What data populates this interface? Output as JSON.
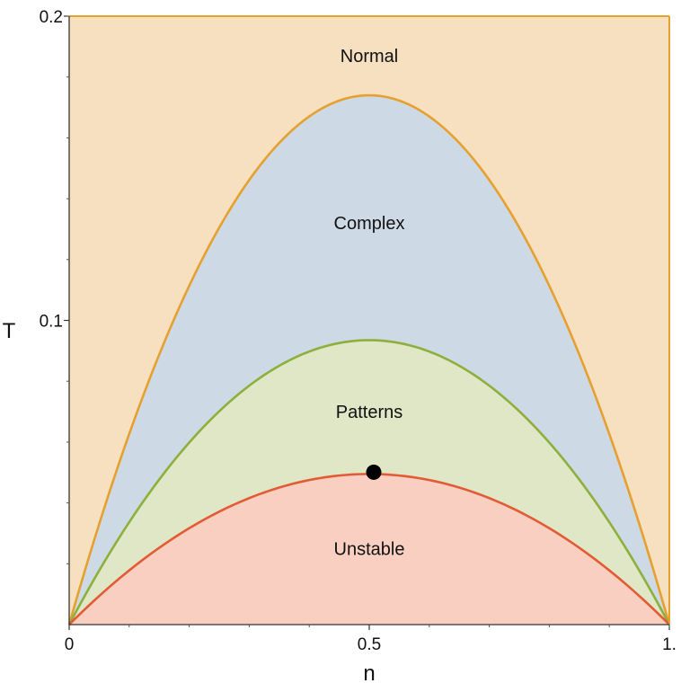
{
  "chart_data": {
    "type": "area",
    "xlabel": "n",
    "ylabel": "T",
    "xlim": [
      0,
      1
    ],
    "ylim": [
      0,
      0.2
    ],
    "x_ticks": [
      {
        "value": 0,
        "label": "0"
      },
      {
        "value": 0.5,
        "label": "0.5"
      },
      {
        "value": 1,
        "label": "1."
      }
    ],
    "y_ticks": [
      {
        "value": 0.1,
        "label": "0.1"
      },
      {
        "value": 0.2,
        "label": "0.2"
      }
    ],
    "grid": false,
    "boundaries": [
      {
        "id": "complex",
        "peak_x": 0.5,
        "peak_y": 0.174,
        "color": "#E6A030"
      },
      {
        "id": "patterns",
        "peak_x": 0.5,
        "peak_y": 0.0935,
        "color": "#8DB03C"
      },
      {
        "id": "unstable",
        "peak_x": 0.5,
        "peak_y": 0.0495,
        "color": "#E35B35"
      }
    ],
    "regions": [
      {
        "label": "Normal",
        "x": 0.5,
        "y": 0.187,
        "fill": "#F6E0BF"
      },
      {
        "label": "Complex",
        "x": 0.5,
        "y": 0.132,
        "fill": "#CED9E6"
      },
      {
        "label": "Patterns",
        "x": 0.5,
        "y": 0.07,
        "fill": "#DFE7C6"
      },
      {
        "label": "Unstable",
        "x": 0.5,
        "y": 0.025,
        "fill": "#F8CFC1"
      }
    ],
    "point": {
      "x": 0.5,
      "y": 0.0495,
      "color": "#000000"
    },
    "frame_color": "#E6A030"
  }
}
